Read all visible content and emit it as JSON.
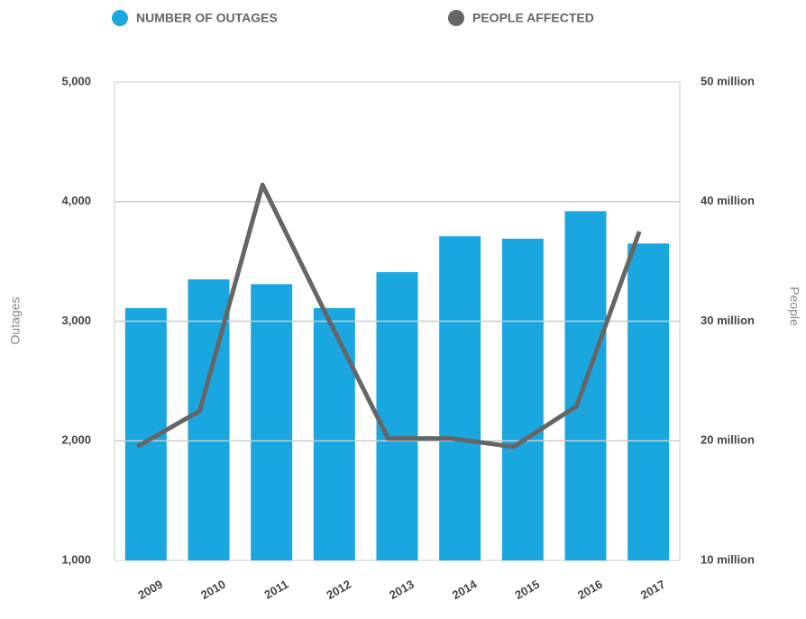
{
  "chart_data": {
    "type": "bar-line",
    "categories": [
      "2009",
      "2010",
      "2011",
      "2012",
      "2013",
      "2014",
      "2015",
      "2016",
      "2017"
    ],
    "series": [
      {
        "name": "NUMBER OF OUTAGES",
        "color": "#1aa7e0",
        "type": "bar",
        "values": [
          3110,
          3350,
          3310,
          3110,
          3410,
          3710,
          3690,
          3920,
          3650
        ]
      },
      {
        "name": "PEOPLE AFFECTED",
        "color": "#666666",
        "type": "line",
        "axis": "y2",
        "values": [
          19.5,
          22.5,
          41.4,
          30.7,
          20.2,
          20.2,
          19.5,
          22.9,
          37.5
        ]
      }
    ],
    "ylabel": "Outages",
    "y2label": "People",
    "ylim": [
      1000,
      5000
    ],
    "yticks": [
      {
        "value": 1000,
        "label": "1,000"
      },
      {
        "value": 2000,
        "label": "2,000"
      },
      {
        "value": 3000,
        "label": "3,000"
      },
      {
        "value": 4000,
        "label": "4,000"
      },
      {
        "value": 5000,
        "label": "5,000"
      }
    ],
    "y2lim": [
      10,
      50
    ],
    "y2ticks": [
      {
        "value": 10,
        "label": "10 million"
      },
      {
        "value": 20,
        "label": "20 million"
      },
      {
        "value": 30,
        "label": "30 million"
      },
      {
        "value": 40,
        "label": "40 million"
      },
      {
        "value": 50,
        "label": "50 million"
      }
    ],
    "grid": true,
    "legend": "top"
  }
}
